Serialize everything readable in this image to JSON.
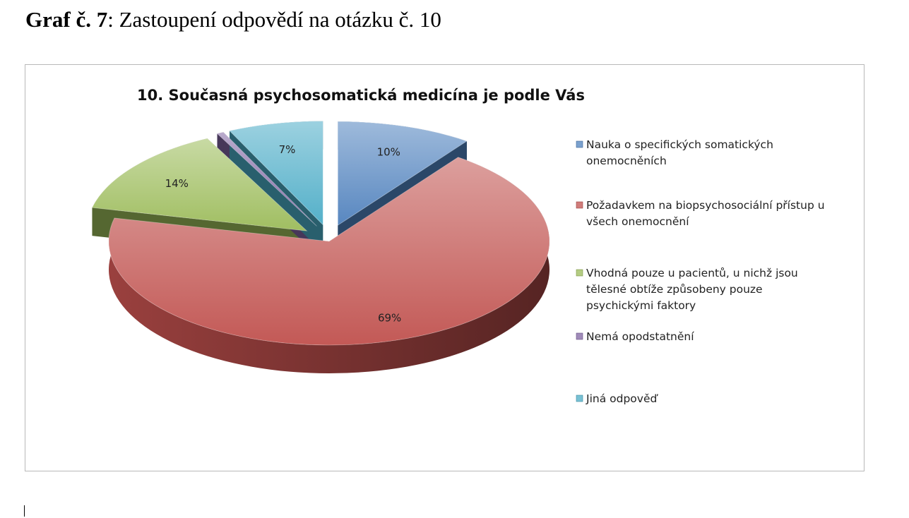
{
  "caption": {
    "prefix": "Graf č. 7",
    "text": ": Zastoupení odpovědí na otázku č. 10"
  },
  "chart_data": {
    "type": "pie",
    "title": "10. Současná psychosomatická medicína je podle Vás",
    "legend_position": "right",
    "exploded": true,
    "three_d": true,
    "unit": "%",
    "slices": [
      {
        "name": "Nauka o specifických somatických onemocněních",
        "value": 10,
        "label": "10%",
        "color": "#4f81bd"
      },
      {
        "name": "Požadavkem na biopsychosociální přístup u všech onemocnění",
        "value": 69,
        "label": "69%",
        "color": "#c0504d"
      },
      {
        "name": "Vhodná pouze u pacientů, u nichž jsou tělesné obtíže způsobeny pouze psychickými faktory",
        "value": 14,
        "label": "14%",
        "color": "#9bbb59"
      },
      {
        "name": "Nemá opodstatnění",
        "value": 0.5,
        "label": "",
        "color": "#8064a2"
      },
      {
        "name": "Jiná odpověď",
        "value": 7,
        "label": "7%",
        "color": "#4bacc6"
      }
    ]
  }
}
